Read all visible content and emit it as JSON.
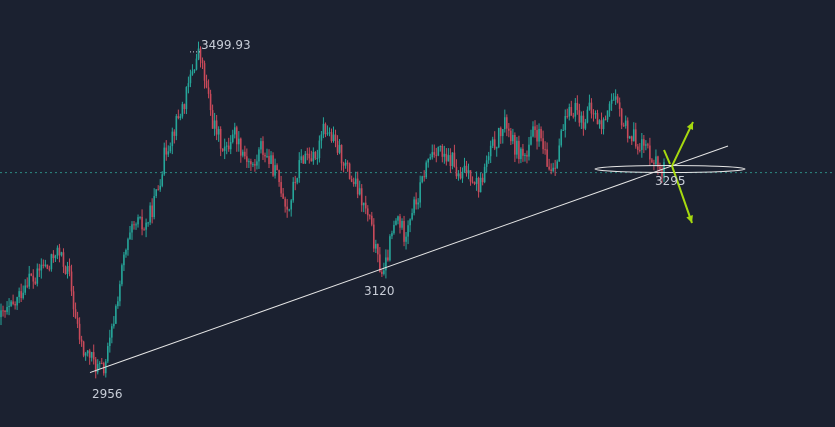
{
  "chart_data": {
    "type": "candlestick",
    "title": "",
    "xlabel": "",
    "ylabel": "",
    "ylim": [
      2940,
      3520
    ],
    "grid": false,
    "current_price_line": 3295,
    "colors": {
      "background": "#1b2130",
      "up": "#26a69a",
      "down": "#c94a5a",
      "trendline": "#e6e6e6",
      "arrow": "#a6d90f",
      "price_line": "#2d8a82",
      "label": "#c9ced8"
    },
    "annotations": [
      {
        "id": "high",
        "text": "3499.93",
        "value": 3499.93
      },
      {
        "id": "low1",
        "text": "2956",
        "value": 2956
      },
      {
        "id": "low2",
        "text": "3120",
        "value": 3120
      },
      {
        "id": "support",
        "text": "3295",
        "value": 3295
      }
    ],
    "trendline": {
      "from_value": 2956,
      "to_value": 3320
    },
    "arrows": [
      {
        "id": "bullish-arrow",
        "direction": "up"
      },
      {
        "id": "bearish-arrow",
        "direction": "down"
      }
    ],
    "price_path": [
      3050,
      3060,
      3070,
      3095,
      3120,
      3110,
      3140,
      3130,
      3165,
      3145,
      3120,
      3040,
      2990,
      2985,
      2965,
      2960,
      3010,
      3080,
      3150,
      3190,
      3210,
      3200,
      3230,
      3270,
      3330,
      3360,
      3390,
      3420,
      3470,
      3500,
      3440,
      3380,
      3350,
      3330,
      3370,
      3340,
      3320,
      3300,
      3340,
      3320,
      3300,
      3270,
      3230,
      3280,
      3320,
      3330,
      3310,
      3380,
      3360,
      3340,
      3320,
      3290,
      3270,
      3240,
      3210,
      3150,
      3120,
      3180,
      3220,
      3190,
      3230,
      3250,
      3300,
      3330,
      3340,
      3310,
      3320,
      3280,
      3300,
      3290,
      3270,
      3310,
      3340,
      3360,
      3380,
      3340,
      3330,
      3320,
      3370,
      3350,
      3300,
      3310,
      3360,
      3390,
      3410,
      3380,
      3400,
      3390,
      3370,
      3420,
      3410,
      3380,
      3360,
      3350,
      3340,
      3330,
      3310,
      3300
    ]
  }
}
